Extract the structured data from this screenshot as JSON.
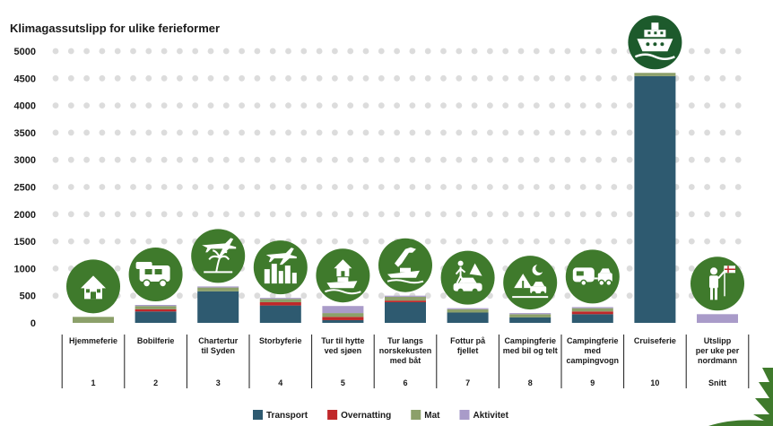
{
  "chart_data": {
    "type": "bar",
    "stacked": true,
    "title": "Klimagassutslipp for ulike ferieformer",
    "ylim": [
      0,
      5000
    ],
    "yticks": [
      0,
      500,
      1000,
      1500,
      2000,
      2500,
      3000,
      3500,
      4000,
      4500,
      5000
    ],
    "grid": "dotted",
    "legend_position": "bottom",
    "categories": [
      "Hjemmeferie",
      "Bobilferie",
      "Chartertur til Syden",
      "Storbyferie",
      "Tur til hytte ved sjøen",
      "Tur langs norskekusten med båt",
      "Fottur på fjellet",
      "Campingferie med bil og telt",
      "Campingferie med campingvogn",
      "Cruiseferie",
      "Utslipp per uke per nordmann"
    ],
    "category_lines": [
      [
        "Hjemmeferie"
      ],
      [
        "Bobilferie"
      ],
      [
        "Chartertur",
        "til Syden"
      ],
      [
        "Storbyferie"
      ],
      [
        "Tur til hytte",
        "ved sjøen"
      ],
      [
        "Tur langs",
        "norskekusten",
        "med båt"
      ],
      [
        "Fottur på",
        "fjellet"
      ],
      [
        "Campingferie",
        "med bil og telt"
      ],
      [
        "Campingferie",
        "med",
        "campingvogn"
      ],
      [
        "Cruiseferie"
      ],
      [
        "Utslipp",
        "per uke per",
        "nordmann"
      ]
    ],
    "numbers": [
      "1",
      "2",
      "3",
      "4",
      "5",
      "6",
      "7",
      "8",
      "9",
      "10",
      "Snitt"
    ],
    "icons": [
      "house-icon",
      "motorhome-icon",
      "airplane-palm-icon",
      "airplane-city-icon",
      "cabin-boat-icon",
      "norway-boat-icon",
      "hiker-car-icon",
      "tent-car-icon",
      "caravan-car-icon",
      "cruise-ship-icon",
      "person-flag-icon"
    ],
    "series": [
      {
        "name": "Transport",
        "color": "#2e5a70",
        "values": [
          0,
          210,
          580,
          320,
          50,
          380,
          190,
          100,
          160,
          4540,
          0
        ]
      },
      {
        "name": "Overnatting",
        "color": "#c0282a",
        "values": [
          0,
          40,
          0,
          60,
          60,
          30,
          0,
          0,
          50,
          0,
          0
        ]
      },
      {
        "name": "Mat",
        "color": "#8ca06a",
        "values": [
          110,
          60,
          70,
          60,
          70,
          70,
          60,
          60,
          60,
          60,
          0
        ]
      },
      {
        "name": "Aktivitet",
        "color": "#a99bc9",
        "values": [
          0,
          20,
          20,
          20,
          130,
          20,
          20,
          20,
          20,
          0,
          160
        ]
      }
    ]
  },
  "colors": {
    "icon_circle": "#3f7a2c",
    "icon_circle_highlight": "#1d5a2c",
    "grid_dot": "#dcdcdc",
    "decor_tree": "#3f7a2c"
  }
}
